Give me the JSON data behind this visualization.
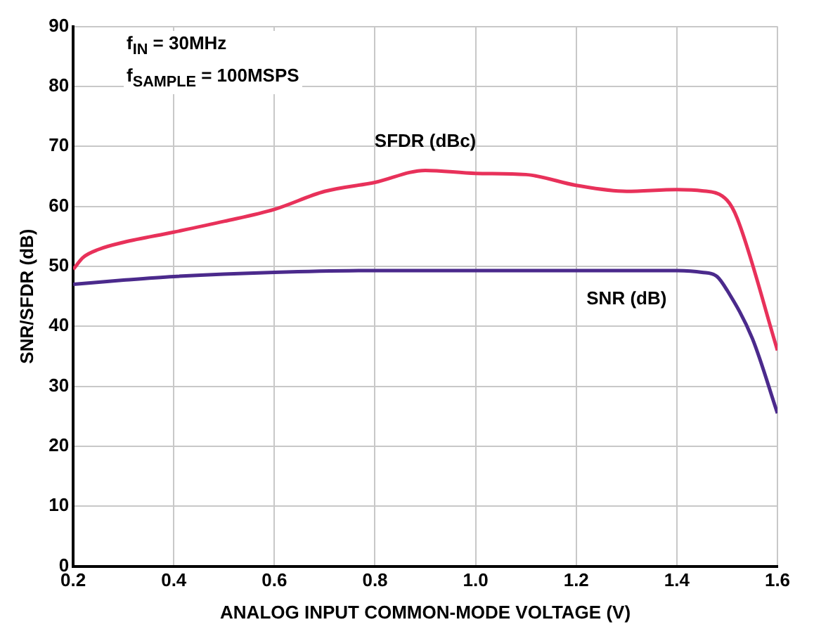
{
  "chart_data": {
    "type": "line",
    "xlabel": "ANALOG INPUT COMMON-MODE VOLTAGE (V)",
    "ylabel": "SNR/SFDR (dB)",
    "annotations": [
      "f$_{IN}$ = 30MHz",
      "f$_{SAMPLE}$ = 100MSPS"
    ],
    "series": [
      {
        "name": "SFDR (dBc)",
        "color": "#e8315a",
        "x": [
          0.2,
          0.22,
          0.25,
          0.3,
          0.4,
          0.5,
          0.6,
          0.7,
          0.8,
          0.9,
          1.0,
          1.1,
          1.2,
          1.3,
          1.4,
          1.45,
          1.5,
          1.52,
          1.6
        ],
        "values": [
          49.5,
          51.5,
          52.8,
          54,
          55.7,
          57.5,
          59.5,
          62.5,
          64,
          66,
          65.5,
          65.3,
          63.5,
          62.5,
          62.8,
          62.6,
          61,
          58,
          36
        ]
      },
      {
        "name": "SNR (dB)",
        "color": "#4b2a8c",
        "x": [
          0.2,
          0.3,
          0.4,
          0.6,
          0.8,
          1.0,
          1.2,
          1.3,
          1.4,
          1.45,
          1.48,
          1.5,
          1.55,
          1.6
        ],
        "values": [
          47,
          47.7,
          48.3,
          49,
          49.3,
          49.3,
          49.3,
          49.3,
          49.3,
          49,
          48.3,
          46,
          38,
          25.5
        ]
      }
    ],
    "xlim": [
      0.2,
      1.6
    ],
    "xticks": [
      {
        "value": 0.2,
        "label": "0.2"
      },
      {
        "value": 0.4,
        "label": "0.4"
      },
      {
        "value": 0.6,
        "label": "0.6"
      },
      {
        "value": 0.8,
        "label": "0.8"
      },
      {
        "value": 1.0,
        "label": "1.0"
      },
      {
        "value": 1.2,
        "label": "1.2"
      },
      {
        "value": 1.4,
        "label": "1.4"
      },
      {
        "value": 1.6,
        "label": "1.6"
      }
    ],
    "ylim": [
      0,
      90
    ],
    "yticks": [
      0,
      10,
      20,
      30,
      40,
      50,
      60,
      70,
      80,
      90
    ],
    "grid": true,
    "legend": false,
    "marker": "none",
    "line_style": "solid"
  }
}
